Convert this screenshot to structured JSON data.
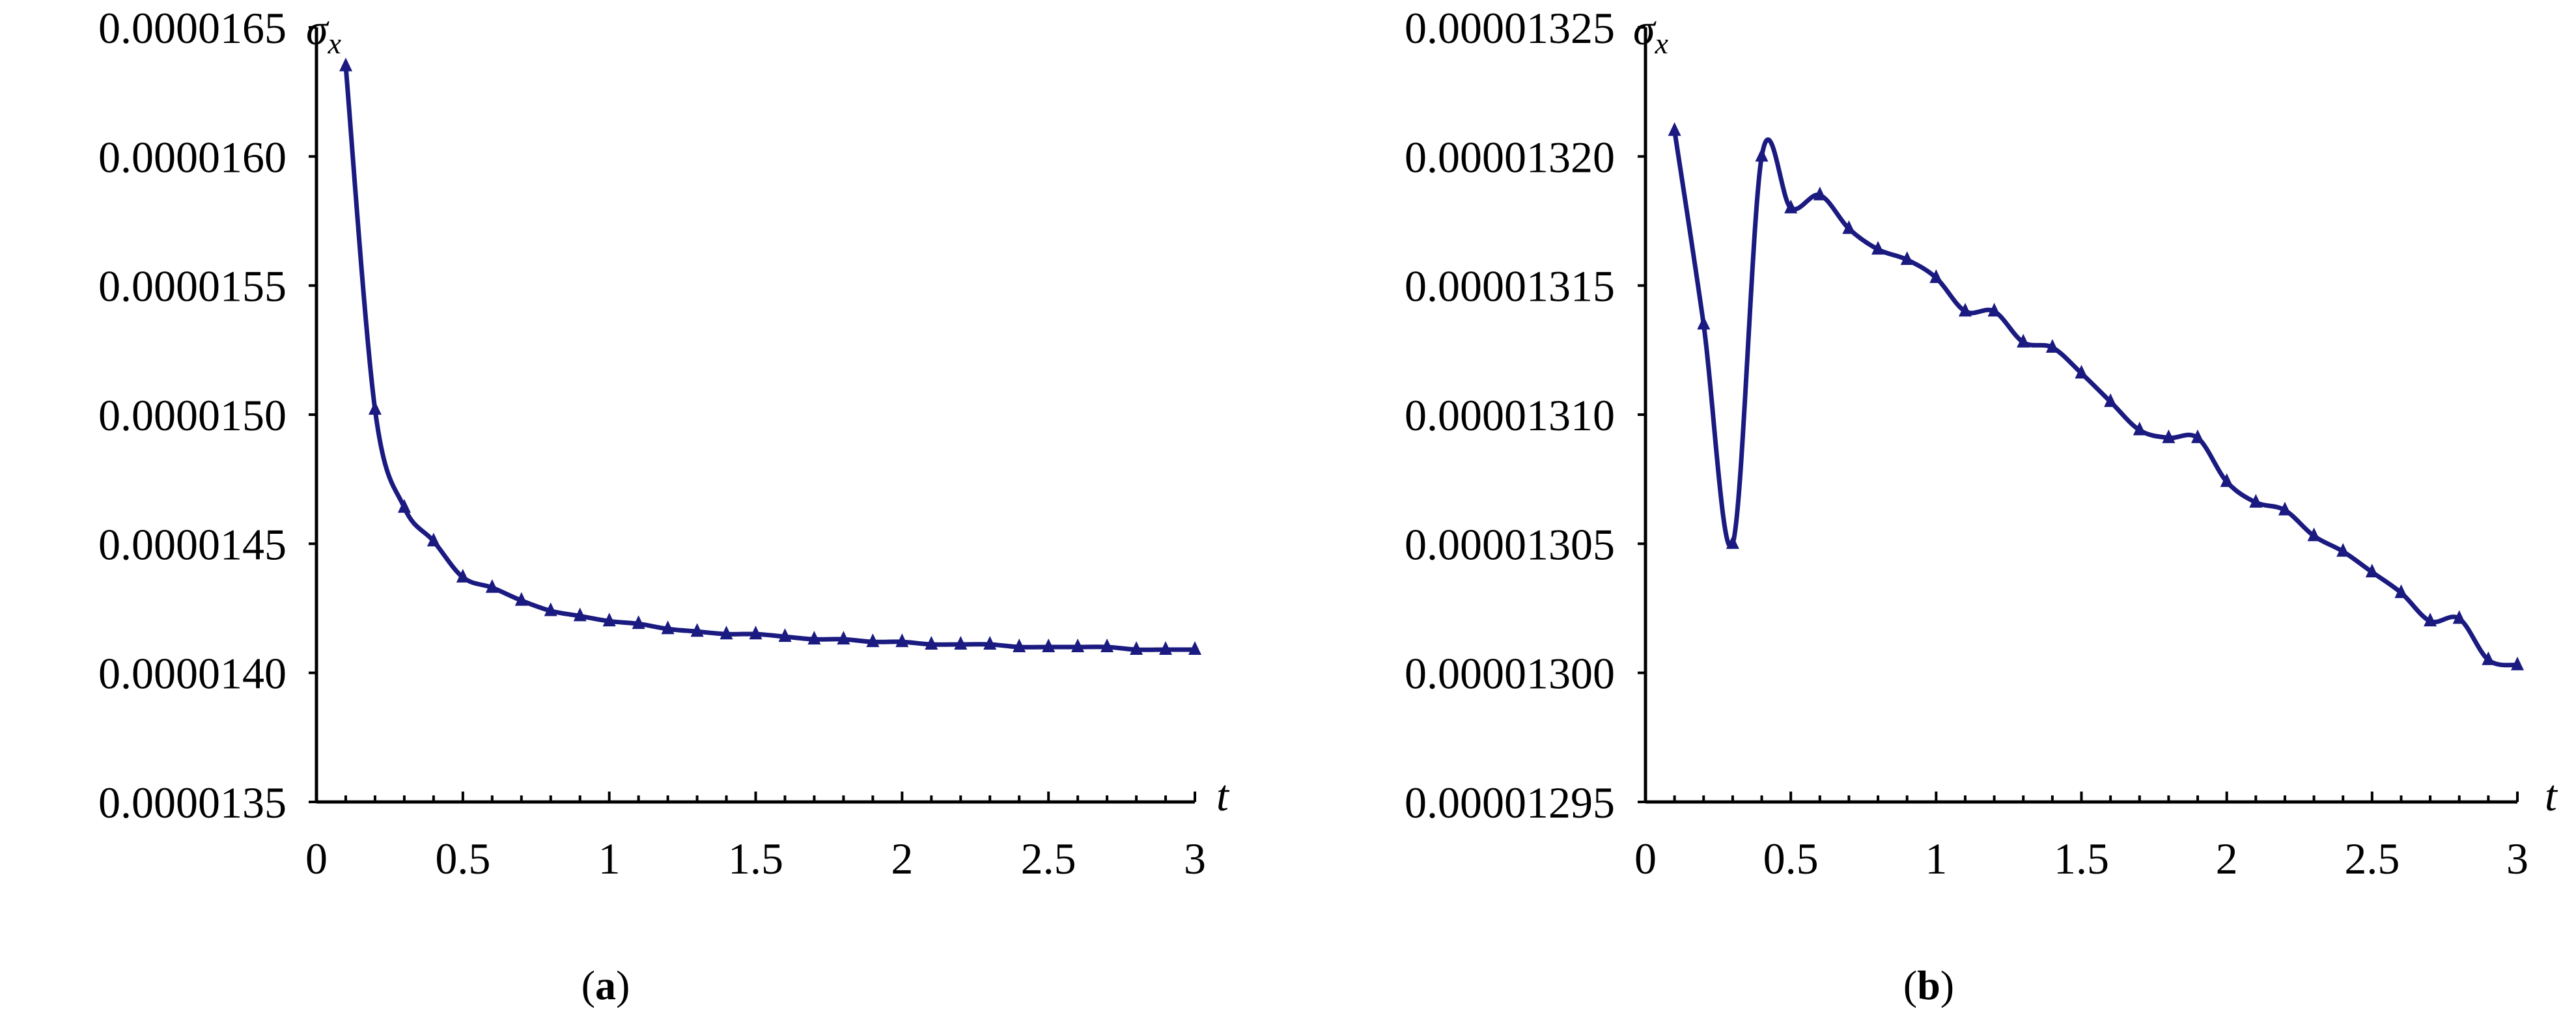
{
  "colors": {
    "series": "#1a1a80",
    "axis": "#000000"
  },
  "chart_data": [
    {
      "type": "line",
      "caption_open": "(",
      "caption_letter": "a",
      "caption_close": ")",
      "ylabel_main": "σ",
      "ylabel_sub": "x",
      "xlabel": "t",
      "xlim": [
        0,
        3
      ],
      "ylim": [
        1.35e-05,
        1.65e-05
      ],
      "xticks": [
        "0",
        "0.5",
        "1",
        "1.5",
        "2",
        "2.5",
        "3"
      ],
      "yticks": [
        "0.0000135",
        "0.0000140",
        "0.0000145",
        "0.0000150",
        "0.0000155",
        "0.0000160",
        "0.0000165"
      ],
      "marker": "triangle",
      "series": [
        {
          "x": [
            0.1,
            0.2,
            0.3,
            0.4,
            0.5,
            0.6,
            0.7,
            0.8,
            0.9,
            1.0,
            1.1,
            1.2,
            1.3,
            1.4,
            1.5,
            1.6,
            1.7,
            1.8,
            1.9,
            2.0,
            2.1,
            2.2,
            2.3,
            2.4,
            2.5,
            2.6,
            2.7,
            2.8,
            2.9,
            3.0
          ],
          "y": [
            1.635e-05,
            1.502e-05,
            1.464e-05,
            1.451e-05,
            1.437e-05,
            1.433e-05,
            1.428e-05,
            1.424e-05,
            1.422e-05,
            1.42e-05,
            1.419e-05,
            1.417e-05,
            1.416e-05,
            1.415e-05,
            1.415e-05,
            1.414e-05,
            1.413e-05,
            1.413e-05,
            1.412e-05,
            1.412e-05,
            1.411e-05,
            1.411e-05,
            1.411e-05,
            1.41e-05,
            1.41e-05,
            1.41e-05,
            1.41e-05,
            1.409e-05,
            1.409e-05,
            1.409e-05
          ]
        }
      ]
    },
    {
      "type": "line",
      "caption_open": "(",
      "caption_letter": "b",
      "caption_close": ")",
      "ylabel_main": "σ",
      "ylabel_sub": "x",
      "xlabel": "t",
      "xlim": [
        0,
        3
      ],
      "ylim": [
        1.295e-05,
        1.325e-05
      ],
      "xticks": [
        "0",
        "0.5",
        "1",
        "1.5",
        "2",
        "2.5",
        "3"
      ],
      "yticks": [
        "0.00001295",
        "0.00001300",
        "0.00001305",
        "0.00001310",
        "0.00001315",
        "0.00001320",
        "0.00001325"
      ],
      "marker": "triangle",
      "series": [
        {
          "x": [
            0.1,
            0.2,
            0.3,
            0.4,
            0.5,
            0.6,
            0.7,
            0.8,
            0.9,
            1.0,
            1.1,
            1.2,
            1.3,
            1.4,
            1.5,
            1.6,
            1.7,
            1.8,
            1.9,
            2.0,
            2.1,
            2.2,
            2.3,
            2.4,
            2.5,
            2.6,
            2.7,
            2.8,
            2.9,
            3.0
          ],
          "y": [
            1.321e-05,
            1.3135e-05,
            1.305e-05,
            1.32e-05,
            1.318e-05,
            1.3185e-05,
            1.3172e-05,
            1.3164e-05,
            1.316e-05,
            1.3153e-05,
            1.314e-05,
            1.314e-05,
            1.3128e-05,
            1.3126e-05,
            1.3116e-05,
            1.3105e-05,
            1.3094e-05,
            1.3091e-05,
            1.3091e-05,
            1.3074e-05,
            1.3066e-05,
            1.3063e-05,
            1.3053e-05,
            1.3047e-05,
            1.3039e-05,
            1.3031e-05,
            1.302e-05,
            1.3021e-05,
            1.3005e-05,
            1.3003e-05
          ]
        }
      ]
    }
  ]
}
